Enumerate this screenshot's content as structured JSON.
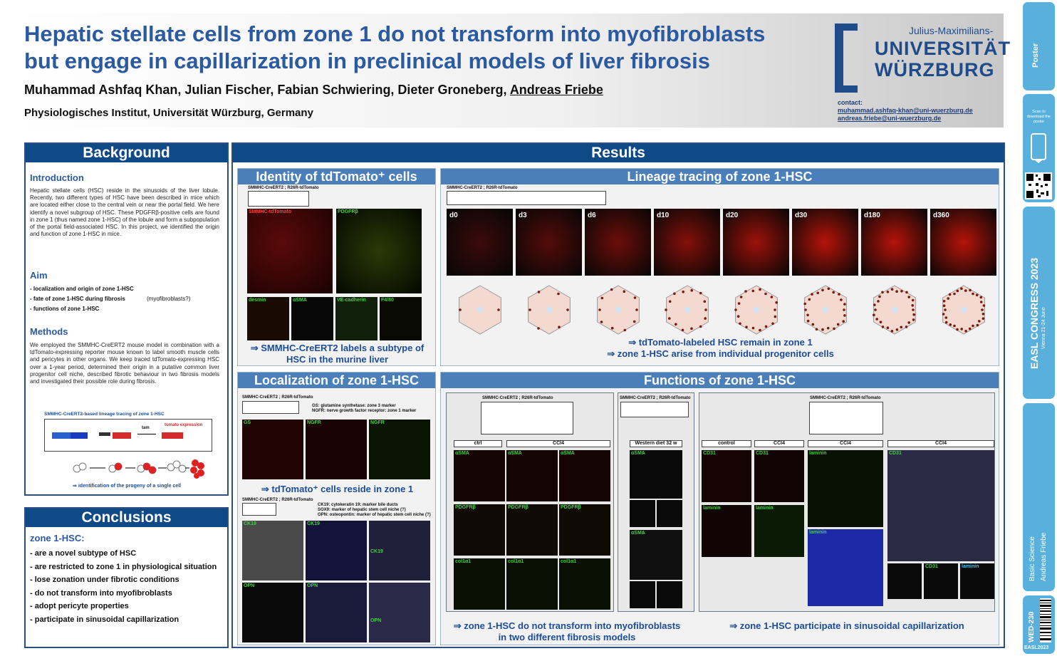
{
  "header": {
    "title_line1": "Hepatic stellate cells from zone 1 do not transform into myofibroblasts",
    "title_line2": "but engage in capillarization in preclinical models of liver fibrosis",
    "authors": "Muhammad Ashfaq Khan, Julian Fischer, Fabian Schwiering, Dieter Groneberg, ",
    "last_author": "Andreas Friebe",
    "affiliation": "Physiologisches Institut, Universität Würzburg, Germany",
    "logo_top": "Julius-Maximilians-",
    "logo_mid": "UNIVERSITÄT",
    "logo_bot": "WÜRZBURG",
    "contact_label": "contact:",
    "contact_email1": "muhammad.ashfaq-khan@uni-wuerzburg.de",
    "contact_email2": "andreas.friebe@uni-wuerzburg.de"
  },
  "strip": {
    "poster_label": "Poster",
    "scan_text": "Scan to download the poster",
    "congress": "EASL CONGRESS 2023",
    "city": "Vienna 21-24 June",
    "category": "Basic Science",
    "presenter": "Andreas Friebe",
    "code": "WED-230",
    "year": "EASL2023"
  },
  "background": {
    "heading": "Background",
    "intro_title": "Introduction",
    "intro_text": "Hepatic stellate cells (HSC) reside in the sinusoids of the liver lobule. Recently, two different types of HSC have been described in mice which are located either close to the central vein or near the portal field. We here identify a novel subgroup of HSC. These PDGFRβ-positive cells are found in zone 1 (thus named zone 1-HSC) of the lobule and form a subpopulation of the portal field-associated HSC. In this project, we identified the origin and function of zone 1-HSC in mice.",
    "aim_title": "Aim",
    "aims": [
      "- localization and origin of zone 1-HSC",
      "- fate of zone 1-HSC during fibrosis",
      "- functions of zone 1-HSC"
    ],
    "aim_note": "(myofibroblasts?)",
    "methods_title": "Methods",
    "methods_text": "We employed the SMMHC-CreERT2 mouse model in combination with a tdTomato-expressing reporter mouse known to label smooth muscle cells and pericytes in other organs. We keep traced tdTomato-expressing HSC over a 1-year period, determined their origin in a putative common liver progenitor cell niche, described fibrotic behaviour in two fibrosis models and investigated their possible role during fibrosis.",
    "scheme_title": "SMMHC-CreERT2-based lineage tracing of zone 1-HSC",
    "scheme_tomato": "tomato expression",
    "scheme_tam": "tam",
    "scheme_result": "identification of the progeny of a single cell"
  },
  "conclusions": {
    "heading": "Conclusions",
    "subtitle": "zone 1-HSC:",
    "items": [
      "- are a novel subtype of HSC",
      "- are restricted to zone 1 in physiological situation",
      "- lose zonation under fibrotic conditions",
      "- do not transform into myofibroblasts",
      "- adopt pericyte properties",
      "- participate in sinusoidal capillarization"
    ]
  },
  "results": {
    "heading": "Results",
    "identity": {
      "title": "Identity of tdTomato⁺ cells",
      "model": "SMMHC-CreERT2 ; R26R-tdTomato",
      "conclusion_line1": "⇒ SMMHC-CreERT2 labels a subtype of",
      "conclusion_line2": "HSC in the murine liver",
      "panels": [
        "SMMHC-tdTomato",
        "PDGFRβ",
        "desmin",
        "αSMA",
        "VE-cadherin",
        "F4/80"
      ]
    },
    "lineage": {
      "title": "Lineage tracing of zone 1-HSC",
      "model": "SMMHC-CreERT2 ; R26R-tdTomato",
      "days": [
        "d0",
        "d3",
        "d6",
        "d10",
        "d20",
        "d30",
        "d180",
        "d360"
      ],
      "conclusion_line1": "⇒ tdTomato-labeled HSC remain in zone 1",
      "conclusion_line2": "⇒ zone 1-HSC arise from individual progenitor cells"
    },
    "localization": {
      "title": "Localization of zone 1-HSC",
      "model": "SMMHC-CreERT2 ; R26R-tdTomato",
      "gs_note": "GS:    glutamine synthetase: zone 3 marker",
      "ngfr_note": "NGFR: nerve growth factor receptor: zone 1 marker",
      "panels": [
        "GS",
        "NGFR",
        "NGFR"
      ],
      "conclusion": "⇒ tdTomato⁺ cells reside in zone 1",
      "ck19_note": "CK19:  cytokeratin 19: marker bile ducts",
      "sox9_note": "SOX9:  marker of hepatic stem cell niche (?)",
      "opn_note": "OPN:   osteopontin: marker of hepatic stem cell niche (?)",
      "panels2": [
        "CK19",
        "CK19",
        "CK19",
        "OPN",
        "OPN",
        "OPN"
      ]
    },
    "functions": {
      "title": "Functions of zone 1-HSC",
      "model": "SMMHC-CreERT2 ; R26R-tdTomato",
      "ctrl": "ctrl",
      "ccl4": "CCl4",
      "western": "Western diet 32 w",
      "control": "control",
      "markers": [
        "αSMA",
        "PDGFRβ",
        "col1α1"
      ],
      "markers2": [
        "CD31",
        "laminin"
      ],
      "conclusion_left_line1": "⇒ zone 1-HSC do not transform into myofibroblasts",
      "conclusion_left_line2": "in two different fibrosis models",
      "conclusion_right": "⇒ zone 1-HSC participate in sinusoidal capillarization"
    }
  }
}
